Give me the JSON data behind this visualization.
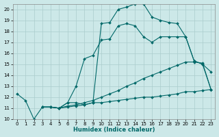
{
  "xlabel": "Humidex (Indice chaleur)",
  "bg_color": "#cce8e8",
  "grid_color": "#aacccc",
  "line_color": "#006868",
  "xlim": [
    -0.5,
    23.5
  ],
  "ylim": [
    10,
    20.5
  ],
  "xticks": [
    0,
    1,
    2,
    3,
    4,
    5,
    6,
    7,
    8,
    9,
    10,
    11,
    12,
    13,
    14,
    15,
    16,
    17,
    18,
    19,
    20,
    21,
    22,
    23
  ],
  "yticks": [
    10,
    11,
    12,
    13,
    14,
    15,
    16,
    17,
    18,
    19,
    20
  ],
  "curve1_x": [
    0,
    1,
    2,
    3,
    4,
    5,
    6,
    7,
    8,
    9,
    10,
    11,
    12,
    13,
    14,
    15,
    16,
    17,
    18,
    19,
    20,
    21,
    22,
    23
  ],
  "curve1_y": [
    12.3,
    11.7,
    10.0,
    11.1,
    11.1,
    11.0,
    11.1,
    11.2,
    11.3,
    11.5,
    11.5,
    11.6,
    11.7,
    11.8,
    11.9,
    12.0,
    12.0,
    12.1,
    12.2,
    12.3,
    12.5,
    12.5,
    12.6,
    12.7
  ],
  "curve2_x": [
    3,
    4,
    5,
    6,
    7,
    8,
    9,
    10,
    11,
    12,
    13,
    14,
    15,
    16,
    17,
    18,
    19,
    20,
    21,
    22,
    23
  ],
  "curve2_y": [
    11.1,
    11.1,
    11.0,
    11.2,
    11.3,
    11.5,
    11.7,
    12.0,
    12.3,
    12.6,
    13.0,
    13.3,
    13.7,
    14.0,
    14.3,
    14.6,
    14.9,
    15.2,
    15.2,
    15.1,
    12.7
  ],
  "curve3_x": [
    3,
    4,
    5,
    6,
    7,
    8,
    9,
    10,
    11,
    12,
    13,
    14,
    15,
    16,
    17,
    18,
    19,
    20,
    21,
    22,
    23
  ],
  "curve3_y": [
    11.1,
    11.1,
    11.0,
    11.5,
    13.0,
    15.5,
    15.8,
    17.2,
    17.3,
    18.5,
    18.7,
    18.5,
    17.5,
    17.0,
    17.5,
    17.5,
    17.5,
    17.5,
    15.3,
    15.0,
    14.3
  ],
  "curve4_x": [
    3,
    4,
    5,
    6,
    7,
    8,
    9,
    10,
    11,
    12,
    13,
    14,
    15,
    16,
    17,
    18,
    19,
    20,
    21,
    22,
    23
  ],
  "curve4_y": [
    11.1,
    11.1,
    11.0,
    11.5,
    11.5,
    11.3,
    11.5,
    18.7,
    18.8,
    20.0,
    20.2,
    20.5,
    20.5,
    19.3,
    19.0,
    18.8,
    18.7,
    17.5,
    15.3,
    15.0,
    12.7
  ]
}
